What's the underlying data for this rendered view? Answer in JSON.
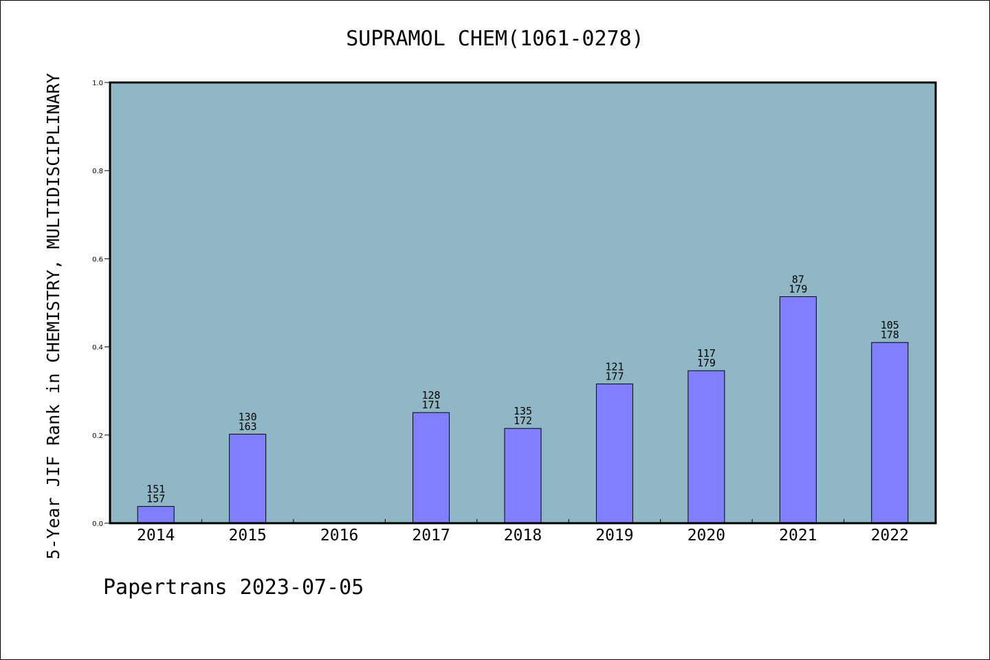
{
  "chart_data": {
    "type": "bar",
    "title": "SUPRAMOL CHEM(1061-0278)",
    "ylabel": "5-Year JIF Rank in CHEMISTRY, MULTIDISCIPLINARY",
    "xlabel": "",
    "ylim": [
      0,
      1.0
    ],
    "yticks": [
      "0.0",
      "0.2",
      "0.4",
      "0.6",
      "0.8",
      "1.0"
    ],
    "grid": false,
    "categories": [
      "2014",
      "2015",
      "2016",
      "2017",
      "2018",
      "2019",
      "2020",
      "2021",
      "2022"
    ],
    "values": [
      0.038,
      0.202,
      null,
      0.251,
      0.215,
      0.316,
      0.346,
      0.514,
      0.41
    ],
    "rank": [
      "151",
      "130",
      "",
      "128",
      "135",
      "121",
      "117",
      "87",
      "105"
    ],
    "total": [
      "157",
      "163",
      "",
      "171",
      "172",
      "177",
      "179",
      "179",
      "178"
    ],
    "plot_background": "#8fb7c5",
    "bar_color": "#8080ff"
  },
  "footer": "Papertrans 2023-07-05"
}
